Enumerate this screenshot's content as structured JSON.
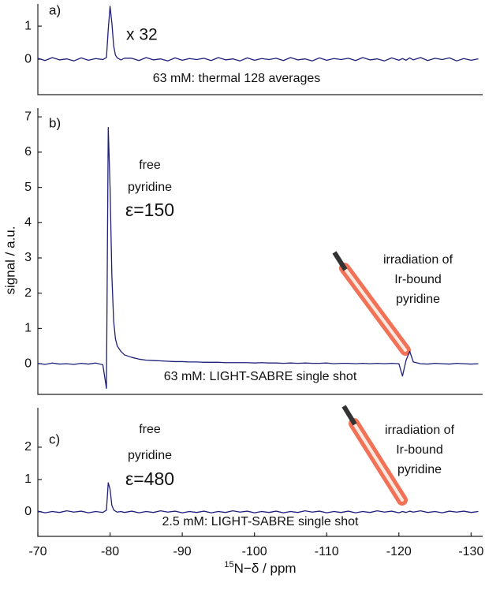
{
  "chart_data": [
    {
      "type": "line",
      "color": "#1f1f7a",
      "annotations": [
        "a)",
        "x 32",
        "63 mM:  thermal 128 averages"
      ],
      "xlim": [
        -70,
        -131.6
      ],
      "ylim": [
        -1.07,
        1.67
      ],
      "yticks": [
        0,
        1
      ],
      "x": [
        -70,
        -71,
        -72,
        -73,
        -74,
        -75,
        -76,
        -77,
        -78,
        -79,
        -79.5,
        -79.75,
        -80,
        -80.25,
        -80.5,
        -80.75,
        -81,
        -81.5,
        -82,
        -83,
        -84,
        -85,
        -86,
        -87,
        -88,
        -89,
        -90,
        -91,
        -92,
        -93,
        -94,
        -95,
        -96,
        -97,
        -98,
        -99,
        -100,
        -101,
        -102,
        -103,
        -104,
        -105,
        -106,
        -107,
        -108,
        -109,
        -110,
        -111,
        -112,
        -113,
        -114,
        -115,
        -116,
        -117,
        -118,
        -119,
        -120,
        -120.5,
        -121,
        -121.5,
        -122,
        -123,
        -124,
        -125,
        -126,
        -127,
        -128,
        -129,
        -130,
        -131
      ],
      "values": [
        0.03,
        -0.04,
        0.05,
        -0.02,
        0.01,
        -0.05,
        0.04,
        -0.03,
        0.02,
        -0.01,
        0.05,
        0.9,
        1.6,
        1.1,
        0.4,
        0.12,
        0.04,
        -0.02,
        0.03,
        0.03,
        -0.04,
        0.05,
        -0.02,
        0.01,
        -0.05,
        0.04,
        -0.03,
        0.02,
        -0.01,
        0.03,
        -0.04,
        0.05,
        -0.02,
        0.01,
        -0.05,
        0.04,
        -0.03,
        0.02,
        -0.01,
        0.03,
        -0.04,
        0.05,
        -0.02,
        0.01,
        -0.05,
        0.04,
        -0.03,
        0.02,
        -0.01,
        0.03,
        -0.04,
        0.05,
        -0.02,
        0.01,
        -0.05,
        0.04,
        -0.03,
        0.02,
        -0.03,
        0.04,
        -0.02,
        0.05,
        -0.04,
        0.03,
        -0.01,
        0.04,
        -0.05,
        0.02,
        -0.03,
        0.01
      ]
    },
    {
      "type": "line",
      "color": "#1f1f7a",
      "ylabel": "signal / a.u.",
      "annotations": [
        "b)",
        "free",
        "pyridine",
        "ε=150",
        "irradiation of",
        "Ir-bound",
        "pyridine",
        "63 mM:  LIGHT-SABRE single shot"
      ],
      "xlim": [
        -70,
        -131.6
      ],
      "ylim": [
        -0.87,
        7.25
      ],
      "yticks": [
        0,
        1,
        2,
        3,
        4,
        5,
        6,
        7
      ],
      "x": [
        -70,
        -71,
        -72,
        -73,
        -74,
        -75,
        -76,
        -77,
        -78,
        -79,
        -79.5,
        -79.75,
        -80,
        -80.25,
        -80.5,
        -80.75,
        -81,
        -81.5,
        -82,
        -83,
        -84,
        -85,
        -86,
        -87,
        -88,
        -89,
        -90,
        -91,
        -92,
        -93,
        -94,
        -95,
        -96,
        -97,
        -98,
        -99,
        -100,
        -101,
        -102,
        -103,
        -104,
        -105,
        -106,
        -107,
        -108,
        -109,
        -110,
        -111,
        -112,
        -113,
        -114,
        -115,
        -116,
        -117,
        -118,
        -119,
        -120,
        -120.5,
        -121,
        -121.5,
        -122,
        -123,
        -124,
        -125,
        -126,
        -127,
        -128,
        -129,
        -130,
        -131
      ],
      "values": [
        0.01,
        -0.02,
        0.02,
        -0.01,
        0.0,
        -0.02,
        0.01,
        -0.01,
        0.02,
        -0.03,
        -0.7,
        6.7,
        5.0,
        2.5,
        1.2,
        0.7,
        0.5,
        0.35,
        0.25,
        0.18,
        0.13,
        0.1,
        0.09,
        0.08,
        0.07,
        0.06,
        0.06,
        0.05,
        0.05,
        0.04,
        0.04,
        0.04,
        0.03,
        0.03,
        0.03,
        0.03,
        0.02,
        0.03,
        0.02,
        0.02,
        0.01,
        0.02,
        0.01,
        0.02,
        0.01,
        0.01,
        0.02,
        0.0,
        0.01,
        0.01,
        0.0,
        0.01,
        0.0,
        0.01,
        0.0,
        0.01,
        0.0,
        -0.35,
        0.1,
        0.35,
        0.05,
        0.0,
        -0.01,
        0.01,
        0.0,
        -0.01,
        0.01,
        0.0,
        -0.01,
        0.0
      ]
    },
    {
      "type": "line",
      "color": "#1f1f7a",
      "xlabel_sup": "15",
      "xlabel": "N−δ  / ppm",
      "annotations": [
        "c)",
        "free",
        "pyridine",
        "ε=480",
        "irradiation of",
        "Ir-bound",
        "pyridine",
        "2.5 mM:  LIGHT-SABRE single shot"
      ],
      "xlim": [
        -70,
        -131.6
      ],
      "ylim": [
        -0.76,
        3.22
      ],
      "yticks": [
        0,
        1,
        2
      ],
      "xticks": [
        -70,
        -80,
        -90,
        -100,
        -110,
        -120,
        -130
      ],
      "x": [
        -70,
        -71,
        -72,
        -73,
        -74,
        -75,
        -76,
        -77,
        -78,
        -79,
        -79.5,
        -79.75,
        -80,
        -80.25,
        -80.5,
        -80.75,
        -81,
        -81.5,
        -82,
        -83,
        -84,
        -85,
        -86,
        -87,
        -88,
        -89,
        -90,
        -91,
        -92,
        -93,
        -94,
        -95,
        -96,
        -97,
        -98,
        -99,
        -100,
        -101,
        -102,
        -103,
        -104,
        -105,
        -106,
        -107,
        -108,
        -109,
        -110,
        -111,
        -112,
        -113,
        -114,
        -115,
        -116,
        -117,
        -118,
        -119,
        -120,
        -120.5,
        -121,
        -121.5,
        -122,
        -123,
        -124,
        -125,
        -126,
        -127,
        -128,
        -129,
        -130,
        -131
      ],
      "values": [
        0.02,
        -0.03,
        0.01,
        -0.02,
        0.03,
        -0.01,
        0.02,
        -0.03,
        0.01,
        -0.02,
        0.05,
        0.9,
        0.7,
        0.2,
        0.06,
        0.02,
        -0.01,
        0.01,
        -0.02,
        0.02,
        -0.03,
        0.01,
        -0.02,
        0.03,
        -0.01,
        0.02,
        -0.03,
        0.01,
        -0.02,
        0.02,
        -0.03,
        0.01,
        -0.02,
        0.03,
        -0.01,
        0.02,
        -0.03,
        0.01,
        -0.02,
        0.02,
        -0.03,
        0.01,
        -0.02,
        0.03,
        -0.01,
        0.02,
        -0.03,
        0.01,
        -0.02,
        0.02,
        -0.03,
        0.01,
        -0.02,
        0.03,
        -0.01,
        0.02,
        -0.03,
        0.01,
        -0.02,
        0.02,
        -0.01,
        0.03,
        -0.02,
        0.01,
        -0.03,
        0.02,
        -0.01,
        0.02,
        -0.02,
        0.01
      ]
    }
  ]
}
